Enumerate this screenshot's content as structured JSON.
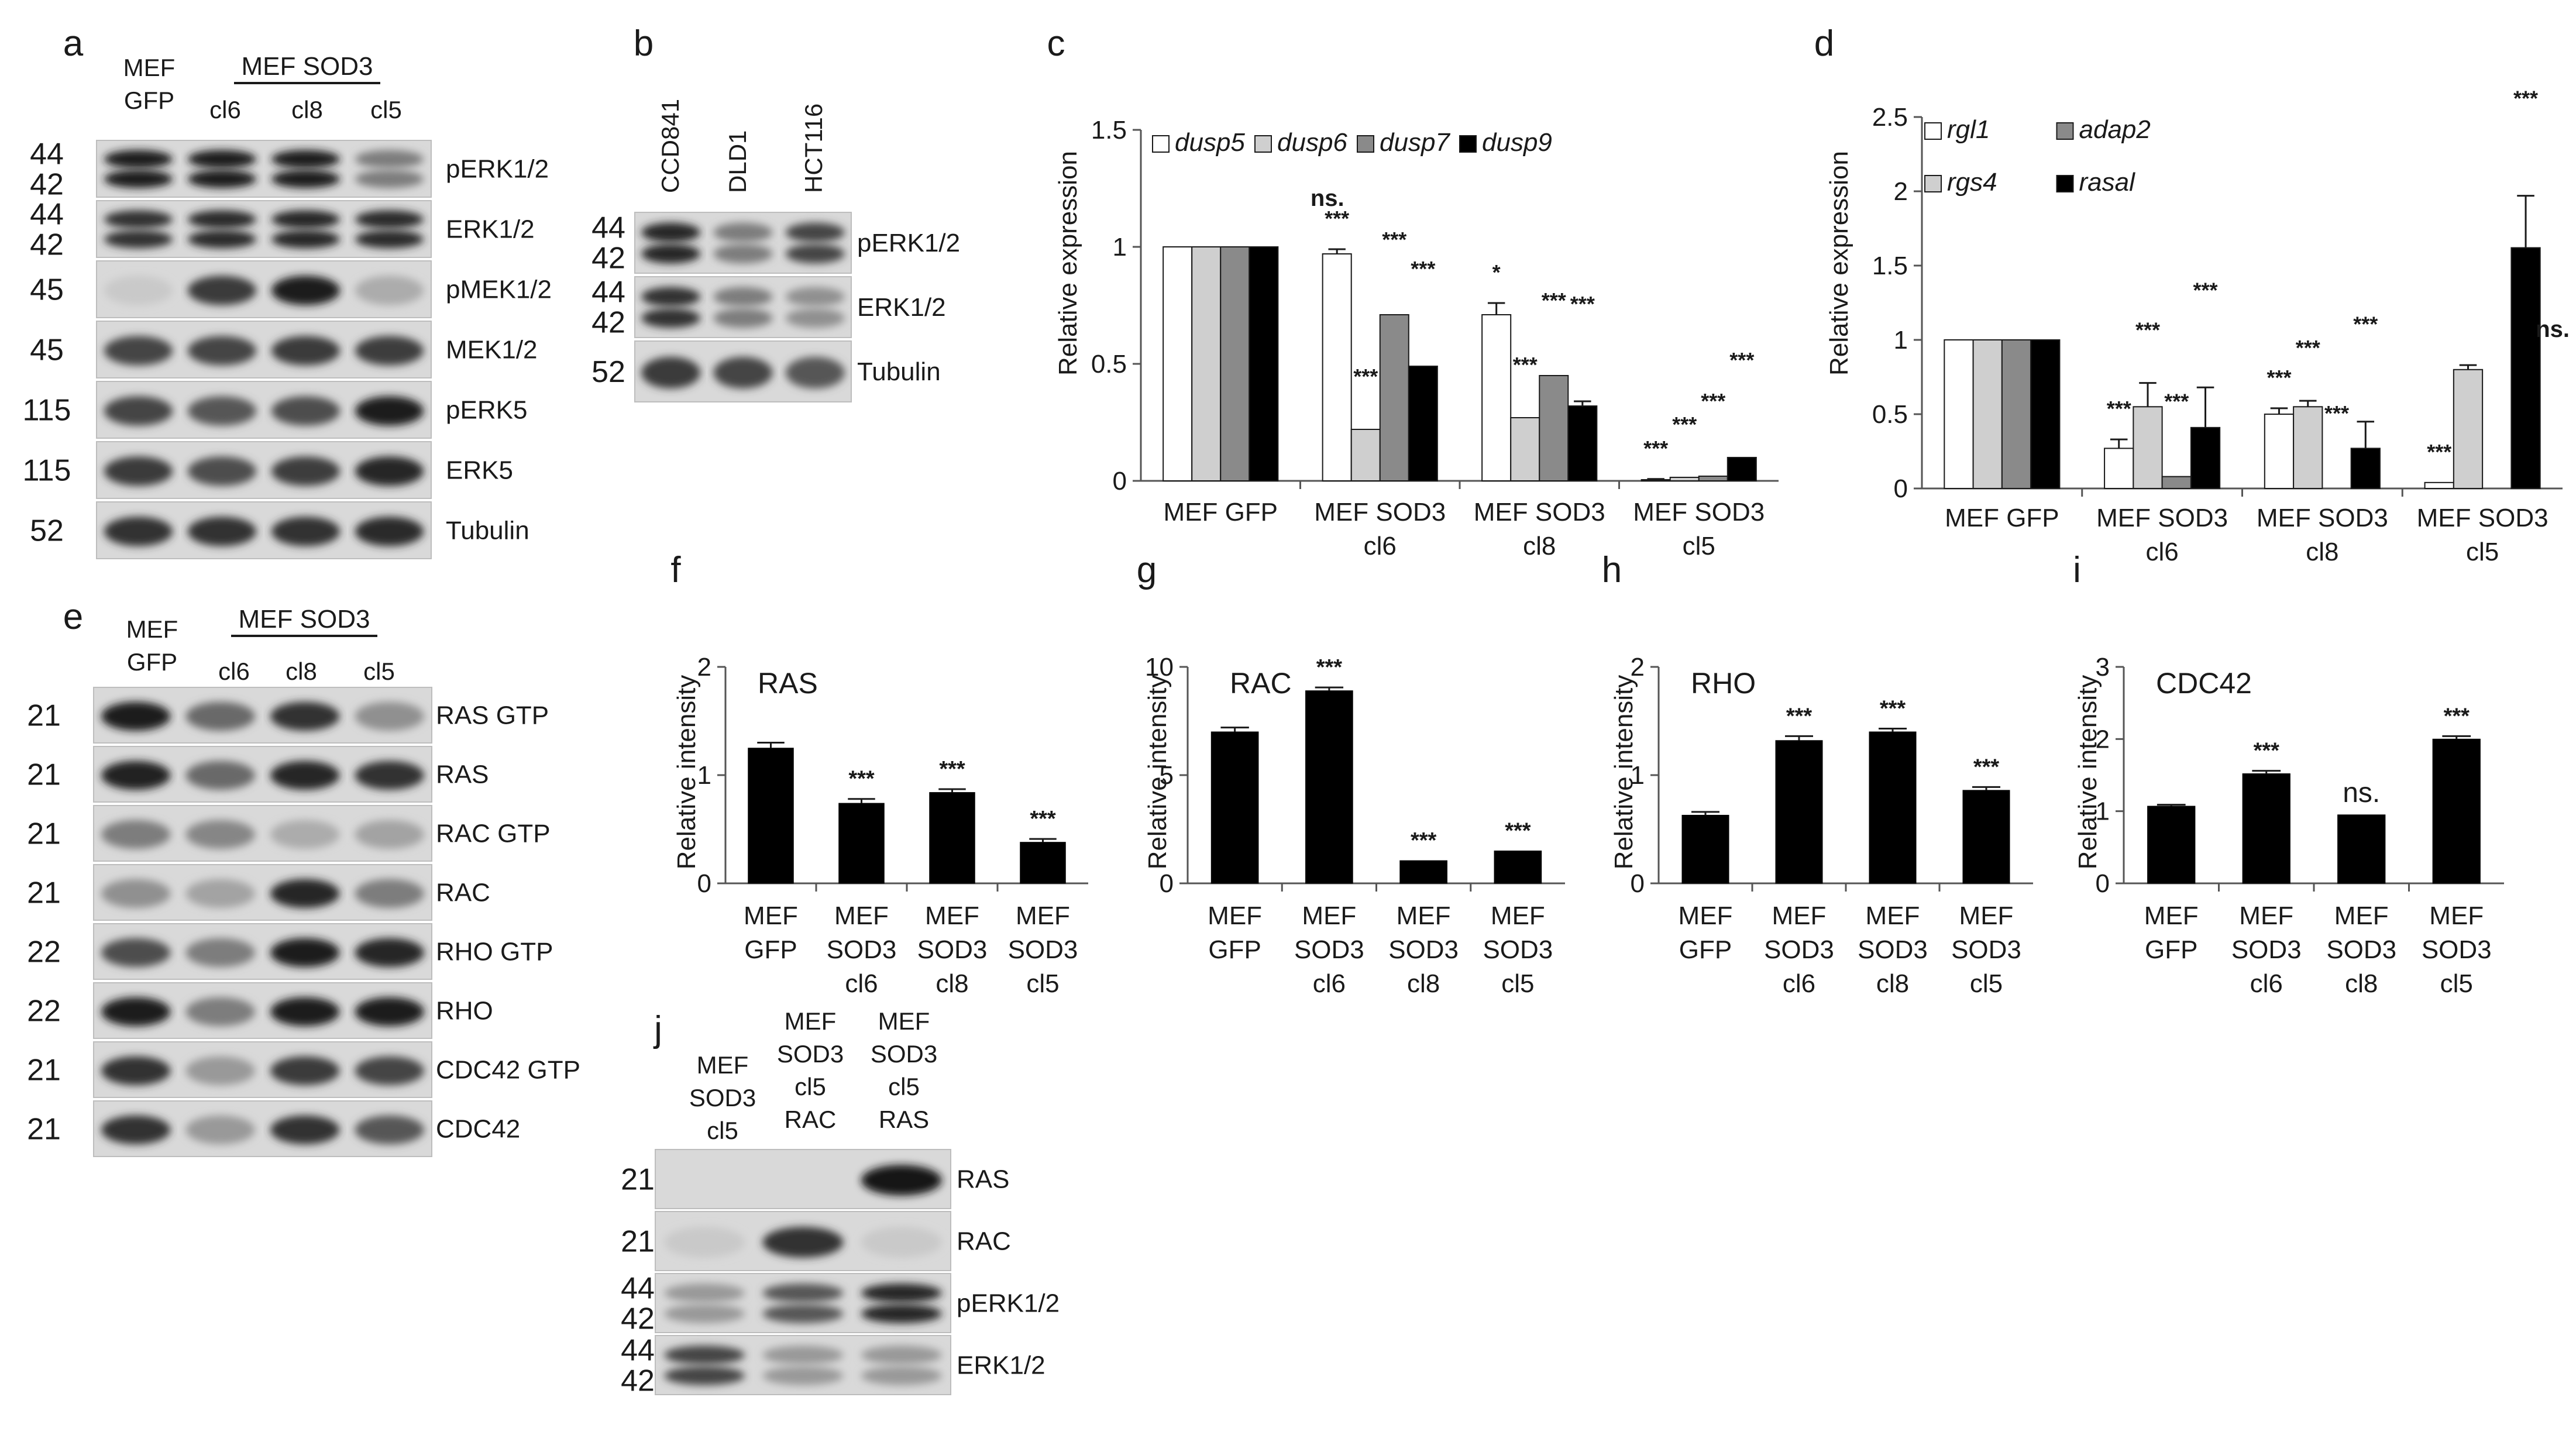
{
  "panels": {
    "a": {
      "letter": "a",
      "col_labels": [
        "MEF\nGFP",
        "cl6",
        "cl8",
        "cl5"
      ],
      "group_label": "MEF SOD3",
      "rows": [
        {
          "mw": [
            "44",
            "42"
          ],
          "label": "pERK1/2"
        },
        {
          "mw": [
            "44",
            "42"
          ],
          "label": "ERK1/2"
        },
        {
          "mw": [
            "45"
          ],
          "label": "pMEK1/2"
        },
        {
          "mw": [
            "45"
          ],
          "label": "MEK1/2"
        },
        {
          "mw": [
            "115"
          ],
          "label": "pERK5"
        },
        {
          "mw": [
            "115"
          ],
          "label": "ERK5"
        },
        {
          "mw": [
            "52"
          ],
          "label": "Tubulin"
        }
      ]
    },
    "b": {
      "letter": "b",
      "col_labels": [
        "CCD841",
        "DLD1",
        "HCT116"
      ],
      "rows": [
        {
          "mw": [
            "44",
            "42"
          ],
          "label": "pERK1/2"
        },
        {
          "mw": [
            "44",
            "42"
          ],
          "label": "ERK1/2"
        },
        {
          "mw": [
            "52"
          ],
          "label": "Tubulin"
        }
      ]
    },
    "e": {
      "letter": "e",
      "col_labels": [
        "MEF\nGFP",
        "cl6",
        "cl8",
        "cl5"
      ],
      "group_label": "MEF SOD3",
      "rows": [
        {
          "mw": [
            "21"
          ],
          "label": "RAS GTP"
        },
        {
          "mw": [
            "21"
          ],
          "label": "RAS"
        },
        {
          "mw": [
            "21"
          ],
          "label": "RAC GTP"
        },
        {
          "mw": [
            "21"
          ],
          "label": "RAC"
        },
        {
          "mw": [
            "22"
          ],
          "label": "RHO GTP"
        },
        {
          "mw": [
            "22"
          ],
          "label": "RHO"
        },
        {
          "mw": [
            "21"
          ],
          "label": "CDC42 GTP"
        },
        {
          "mw": [
            "21"
          ],
          "label": "CDC42"
        }
      ]
    },
    "j": {
      "letter": "j",
      "col_labels": [
        "MEF\nSOD3\ncl5",
        "MEF\nSOD3\ncl5\nRAC",
        "MEF\nSOD3\ncl5\nRAS"
      ],
      "rows": [
        {
          "mw": [
            "21"
          ],
          "label": "RAS"
        },
        {
          "mw": [
            "21"
          ],
          "label": "RAC"
        },
        {
          "mw": [
            "44",
            "42"
          ],
          "label": "pERK1/2"
        },
        {
          "mw": [
            "44",
            "42"
          ],
          "label": "ERK1/2"
        }
      ]
    }
  },
  "chart_data": [
    {
      "id": "c",
      "letter": "c",
      "type": "bar",
      "ylabel": "Relative expression",
      "ylim": [
        0,
        1.5
      ],
      "yticks": [
        "0",
        "0.5",
        "1",
        "1.5"
      ],
      "categories": [
        "MEF GFP",
        "MEF SOD3\ncl6",
        "MEF SOD3\ncl8",
        "MEF SOD3\ncl5"
      ],
      "legend_position": "top",
      "series": [
        {
          "name": "dusp5",
          "color": "#ffffff",
          "values": [
            1.0,
            0.97,
            0.71,
            0.005
          ],
          "errors": [
            0,
            0.02,
            0.05,
            0.003
          ],
          "sig": [
            "",
            "***",
            "*",
            "***"
          ]
        },
        {
          "name": "dusp6",
          "color": "#cfcfcf",
          "values": [
            1.0,
            0.22,
            0.27,
            0.015
          ],
          "errors": [
            0,
            0,
            0,
            0
          ],
          "sig": [
            "",
            "***",
            "***",
            "***"
          ]
        },
        {
          "name": "dusp7",
          "color": "#8a8a8a",
          "values": [
            1.0,
            0.71,
            0.45,
            0.02
          ],
          "errors": [
            0,
            0,
            0,
            0
          ],
          "sig": [
            "",
            "***",
            "***",
            "***"
          ]
        },
        {
          "name": "dusp9",
          "color": "#000000",
          "values": [
            1.0,
            0.49,
            0.32,
            0.1
          ],
          "errors": [
            0,
            0,
            0.02,
            0
          ],
          "sig": [
            "",
            "***",
            "***",
            "***"
          ]
        }
      ],
      "annotations": [
        {
          "text": "ns.",
          "group": 1
        }
      ]
    },
    {
      "id": "d",
      "letter": "d",
      "type": "bar",
      "ylabel": "Relative expression",
      "ylim": [
        0,
        2.5
      ],
      "yticks": [
        "0",
        "0.5",
        "1",
        "1.5",
        "2",
        "2.5"
      ],
      "categories": [
        "MEF GFP",
        "MEF SOD3\ncl6",
        "MEF SOD3\ncl8",
        "MEF SOD3\ncl5"
      ],
      "legend_position": "top-left",
      "series": [
        {
          "name": "rgl1",
          "color": "#ffffff",
          "values": [
            1.0,
            0.27,
            0.5,
            0.04
          ],
          "errors": [
            0,
            0.06,
            0.04,
            0
          ],
          "sig": [
            "",
            "***",
            "***",
            "***"
          ]
        },
        {
          "name": "rgs4",
          "color": "#cfcfcf",
          "values": [
            1.0,
            0.55,
            0.55,
            0.8
          ],
          "errors": [
            0,
            0.16,
            0.04,
            0.03
          ],
          "sig": [
            "",
            "***",
            "***",
            ""
          ]
        },
        {
          "name": "adap2",
          "color": "#8a8a8a",
          "values": [
            1.0,
            0.08,
            0.0,
            0.0
          ],
          "errors": [
            0,
            0,
            0,
            0
          ],
          "sig": [
            "",
            "***",
            "***",
            ""
          ]
        },
        {
          "name": "rasal",
          "color": "#000000",
          "values": [
            1.0,
            0.41,
            0.27,
            1.62
          ],
          "errors": [
            0,
            0.27,
            0.18,
            0.35
          ],
          "sig": [
            "",
            "***",
            "***",
            "***"
          ]
        }
      ],
      "annotations": [
        {
          "text": "ns.",
          "group": 3
        }
      ]
    },
    {
      "id": "f",
      "letter": "f",
      "type": "bar",
      "title": "RAS",
      "ylabel": "Relative intensity",
      "ylim": [
        0,
        2
      ],
      "yticks": [
        "0",
        "1",
        "2"
      ],
      "categories": [
        "MEF\nGFP",
        "MEF\nSOD3\ncl6",
        "MEF\nSOD3\ncl8",
        "MEF\nSOD3\ncl5"
      ],
      "values": [
        1.25,
        0.74,
        0.84,
        0.38
      ],
      "errors": [
        0.05,
        0.04,
        0.03,
        0.03
      ],
      "sig": [
        "",
        "***",
        "***",
        "***"
      ]
    },
    {
      "id": "g",
      "letter": "g",
      "type": "bar",
      "title": "RAC",
      "ylabel": "Relative intensity",
      "ylim": [
        0,
        10
      ],
      "yticks": [
        "0",
        "5",
        "10"
      ],
      "categories": [
        "MEF\nGFP",
        "MEF\nSOD3\ncl6",
        "MEF\nSOD3\ncl8",
        "MEF\nSOD3\ncl5"
      ],
      "values": [
        7.0,
        8.9,
        1.05,
        1.5
      ],
      "errors": [
        0.2,
        0.15,
        0,
        0
      ],
      "sig": [
        "",
        "***",
        "***",
        "***"
      ]
    },
    {
      "id": "h",
      "letter": "h",
      "type": "bar",
      "title": "RHO",
      "ylabel": "Relative intensity",
      "ylim": [
        0,
        2
      ],
      "yticks": [
        "0",
        "1",
        "2"
      ],
      "categories": [
        "MEF\nGFP",
        "MEF\nSOD3\ncl6",
        "MEF\nSOD3\ncl8",
        "MEF\nSOD3\ncl5"
      ],
      "values": [
        0.63,
        1.32,
        1.4,
        0.86
      ],
      "errors": [
        0.03,
        0.04,
        0.03,
        0.03
      ],
      "sig": [
        "",
        "***",
        "***",
        "***"
      ]
    },
    {
      "id": "i",
      "letter": "i",
      "type": "bar",
      "title": "CDC42",
      "ylabel": "Relative intensity",
      "ylim": [
        0,
        3
      ],
      "yticks": [
        "0",
        "1",
        "2",
        "3"
      ],
      "categories": [
        "MEF\nGFP",
        "MEF\nSOD3\ncl6",
        "MEF\nSOD3\ncl8",
        "MEF\nSOD3\ncl5"
      ],
      "values": [
        1.07,
        1.52,
        0.95,
        2.0
      ],
      "errors": [
        0.02,
        0.04,
        0,
        0.04
      ],
      "sig": [
        "",
        "***",
        "ns.",
        "***"
      ]
    }
  ]
}
